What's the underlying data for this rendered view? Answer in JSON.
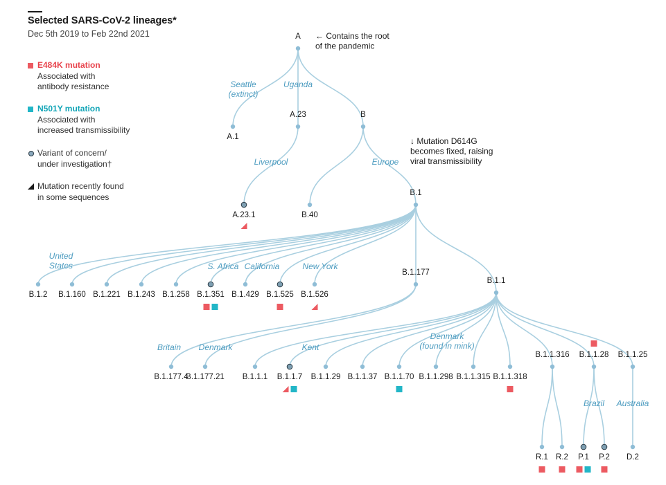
{
  "header": {
    "title": "Selected SARS-CoV-2 lineages*",
    "subtitle": "Dec 5th 2019 to Feb 22nd 2021"
  },
  "colors": {
    "edge": "#a9cfe0",
    "node": "#8fbdd6",
    "voc_fill": "#7e9fb2",
    "voc_stroke": "#2b3a44",
    "e484k": "#ec5a61",
    "n501y": "#22b6c7",
    "region_text": "#4d9cc0",
    "label_text": "#1a1a1a"
  },
  "legend": {
    "e484k": {
      "title": "E484K mutation",
      "desc_1": "Associated with",
      "desc_2": "antibody resistance"
    },
    "n501y": {
      "title": "N501Y mutation",
      "desc_1": "Associated with",
      "desc_2": "increased transmissibility"
    },
    "voc": {
      "line_1": "Variant of concern/",
      "line_2": "under investigation†"
    },
    "recent": {
      "line_1": "Mutation recently found",
      "line_2": "in some sequences"
    }
  },
  "annotations": {
    "root_note": [
      "← Contains the root",
      "of the pandemic"
    ],
    "d614g_note": [
      "↓ Mutation D614G",
      "becomes fixed, raising",
      "viral transmissibility"
    ]
  },
  "tree": {
    "nodes": [
      {
        "id": "A",
        "label": "A",
        "parent": null
      },
      {
        "id": "A.1",
        "label": "A.1",
        "parent": "A"
      },
      {
        "id": "A.23",
        "label": "A.23",
        "parent": "A"
      },
      {
        "id": "B",
        "label": "B",
        "parent": "A"
      },
      {
        "id": "A.23.1",
        "label": "A.23.1",
        "parent": "A.23",
        "voc": true,
        "marks": [
          "e484k-recent"
        ]
      },
      {
        "id": "B.40",
        "label": "B.40",
        "parent": "B"
      },
      {
        "id": "B.1",
        "label": "B.1",
        "parent": "B"
      },
      {
        "id": "B.1.2",
        "label": "B.1.2",
        "parent": "B.1"
      },
      {
        "id": "B.1.160",
        "label": "B.1.160",
        "parent": "B.1"
      },
      {
        "id": "B.1.221",
        "label": "B.1.221",
        "parent": "B.1"
      },
      {
        "id": "B.1.243",
        "label": "B.1.243",
        "parent": "B.1"
      },
      {
        "id": "B.1.258",
        "label": "B.1.258",
        "parent": "B.1"
      },
      {
        "id": "B.1.351",
        "label": "B.1.351",
        "parent": "B.1",
        "voc": true,
        "marks": [
          "e484k",
          "n501y"
        ]
      },
      {
        "id": "B.1.429",
        "label": "B.1.429",
        "parent": "B.1"
      },
      {
        "id": "B.1.525",
        "label": "B.1.525",
        "parent": "B.1",
        "voc": true,
        "marks": [
          "e484k"
        ]
      },
      {
        "id": "B.1.526",
        "label": "B.1.526",
        "parent": "B.1",
        "marks": [
          "e484k-recent"
        ]
      },
      {
        "id": "B.1.177",
        "label": "B.1.177",
        "parent": "B.1"
      },
      {
        "id": "B.1.1",
        "label": "B.1.1",
        "parent": "B.1"
      },
      {
        "id": "B.1.177.4",
        "label": "B.1.177.4",
        "parent": "B.1.177"
      },
      {
        "id": "B.1.177.21",
        "label": "B.1.177.21",
        "parent": "B.1.177"
      },
      {
        "id": "B.1.1.1",
        "label": "B.1.1.1",
        "parent": "B.1.1"
      },
      {
        "id": "B.1.1.7",
        "label": "B.1.1.7",
        "parent": "B.1.1",
        "voc": true,
        "marks": [
          "e484k-recent",
          "n501y"
        ]
      },
      {
        "id": "B.1.1.29",
        "label": "B.1.1.29",
        "parent": "B.1.1"
      },
      {
        "id": "B.1.1.37",
        "label": "B.1.1.37",
        "parent": "B.1.1"
      },
      {
        "id": "B.1.1.70",
        "label": "B.1.1.70",
        "parent": "B.1.1",
        "marks": [
          "n501y"
        ]
      },
      {
        "id": "B.1.1.298",
        "label": "B.1.1.298",
        "parent": "B.1.1"
      },
      {
        "id": "B.1.1.315",
        "label": "B.1.1.315",
        "parent": "B.1.1"
      },
      {
        "id": "B.1.1.318",
        "label": "B.1.1.318",
        "parent": "B.1.1",
        "marks": [
          "e484k"
        ]
      },
      {
        "id": "B.1.1.316",
        "label": "B.1.1.316",
        "parent": "B.1.1"
      },
      {
        "id": "B.1.1.28",
        "label": "B.1.1.28",
        "parent": "B.1.1",
        "marks_above": [
          "e484k"
        ]
      },
      {
        "id": "B.1.1.25",
        "label": "B.1.1.25",
        "parent": "B.1.1"
      },
      {
        "id": "R.1",
        "label": "R.1",
        "parent": "B.1.1.316",
        "marks": [
          "e484k"
        ]
      },
      {
        "id": "R.2",
        "label": "R.2",
        "parent": "B.1.1.316",
        "marks": [
          "e484k"
        ]
      },
      {
        "id": "P.1",
        "label": "P.1",
        "parent": "B.1.1.28",
        "voc": true,
        "marks": [
          "e484k",
          "n501y"
        ]
      },
      {
        "id": "P.2",
        "label": "P.2",
        "parent": "B.1.1.28",
        "voc": true,
        "marks": [
          "e484k"
        ]
      },
      {
        "id": "D.2",
        "label": "D.2",
        "parent": "B.1.1.25"
      }
    ],
    "regions": [
      {
        "lines": [
          "Seattle",
          "(extinct)"
        ],
        "near": "A.1"
      },
      {
        "lines": [
          "Uganda"
        ],
        "near": "A.23"
      },
      {
        "lines": [
          "Liverpool"
        ],
        "near": "A.23.1"
      },
      {
        "lines": [
          "Europe"
        ],
        "near": "B.1"
      },
      {
        "lines": [
          "United",
          "States"
        ],
        "near": "B.1.2"
      },
      {
        "lines": [
          "S. Africa"
        ],
        "near": "B.1.351"
      },
      {
        "lines": [
          "California"
        ],
        "near": "B.1.429"
      },
      {
        "lines": [
          "New York"
        ],
        "near": "B.1.526"
      },
      {
        "lines": [
          "Britain"
        ],
        "near": "B.1.177.4"
      },
      {
        "lines": [
          "Denmark"
        ],
        "near": "B.1.177.21"
      },
      {
        "lines": [
          "Kent"
        ],
        "near": "B.1.1.7"
      },
      {
        "lines": [
          "Denmark",
          "(found in mink)"
        ],
        "near": "B.1.1.70"
      },
      {
        "lines": [
          "Brazil"
        ],
        "near": "P.1"
      },
      {
        "lines": [
          "Australia"
        ],
        "near": "D.2"
      }
    ]
  }
}
